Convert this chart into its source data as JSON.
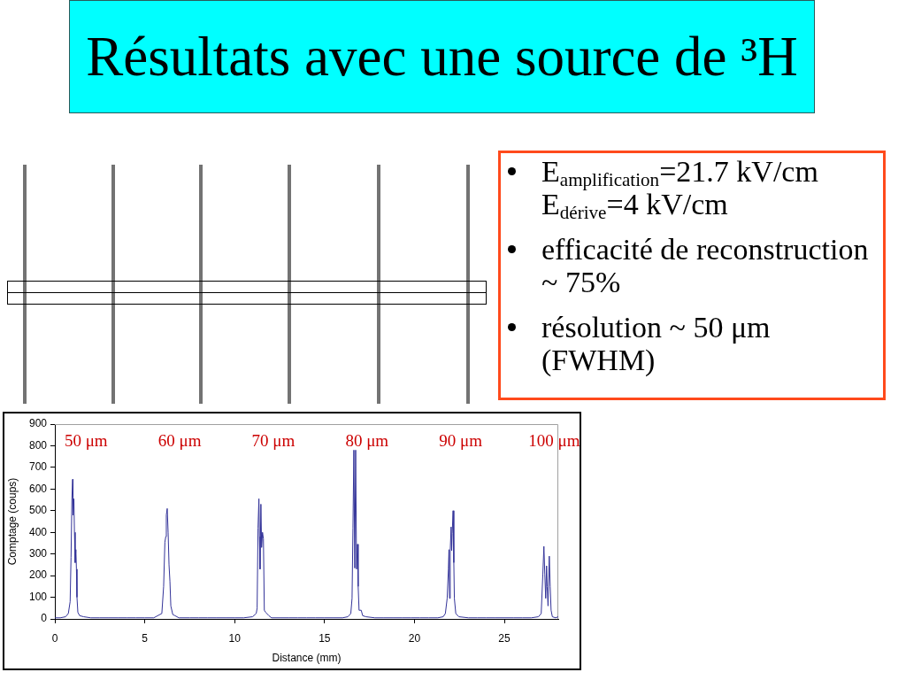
{
  "chart_data": {
    "type": "line",
    "title": "Résultats avec une source de ³H",
    "xlabel": "Distance (mm)",
    "ylabel": "Comptage (coups)",
    "xlim": [
      0,
      28
    ],
    "xticks": [
      0,
      5,
      10,
      15,
      20,
      25
    ],
    "ylim": [
      0,
      900
    ],
    "yticks": [
      0,
      100,
      200,
      300,
      400,
      500,
      600,
      700,
      800,
      900
    ],
    "grid": false,
    "legend": false,
    "marker": "none",
    "line_style": "solid",
    "x": [
      0,
      0.3,
      0.6,
      0.75,
      0.85,
      0.9,
      0.95,
      0.99,
      1.01,
      1.06,
      1.09,
      1.13,
      1.17,
      1.2,
      1.23,
      1.28,
      1.38,
      1.6,
      2,
      2.5,
      3,
      3.5,
      4,
      4.5,
      5,
      5.5,
      5.95,
      6.05,
      6.12,
      6.17,
      6.2,
      6.25,
      6.3,
      6.35,
      6.4,
      6.45,
      6.56,
      6.68,
      6.9,
      7.5,
      8,
      8.5,
      9,
      9.5,
      10,
      10.5,
      11,
      11.2,
      11.25,
      11.3,
      11.35,
      11.38,
      11.41,
      11.46,
      11.5,
      11.55,
      11.6,
      11.65,
      11.73,
      11.9,
      12.05,
      12.5,
      13,
      13.5,
      14,
      14.5,
      15,
      15.5,
      16,
      16.3,
      16.46,
      16.53,
      16.58,
      16.63,
      16.68,
      16.73,
      16.78,
      16.83,
      16.87,
      16.92,
      17.04,
      17.12,
      17.3,
      17.8,
      18.3,
      18.8,
      19.3,
      19.8,
      20.3,
      20.8,
      21.3,
      21.6,
      21.72,
      21.82,
      21.89,
      21.92,
      21.95,
      21.99,
      22.04,
      22.07,
      22.1,
      22.15,
      22.19,
      22.22,
      22.3,
      22.47,
      23,
      23.5,
      24,
      24.5,
      25,
      25.5,
      26,
      26.5,
      26.9,
      27.05,
      27.14,
      27.2,
      27.25,
      27.3,
      27.35,
      27.38,
      27.43,
      27.5,
      27.55,
      27.6,
      27.67,
      27.85,
      28
    ],
    "series": [
      {
        "color": "#333399",
        "values": [
          5,
          5,
          10,
          25,
          80,
          285,
          560,
          645,
          480,
          555,
          400,
          260,
          320,
          230,
          100,
          30,
          15,
          10,
          5,
          5,
          5,
          5,
          5,
          5,
          5,
          5,
          25,
          150,
          355,
          380,
          480,
          510,
          400,
          250,
          175,
          60,
          20,
          15,
          5,
          5,
          5,
          5,
          5,
          5,
          5,
          5,
          10,
          25,
          50,
          420,
          555,
          380,
          230,
          530,
          330,
          400,
          370,
          40,
          30,
          15,
          5,
          5,
          5,
          5,
          5,
          5,
          5,
          5,
          5,
          10,
          25,
          95,
          420,
          780,
          235,
          780,
          230,
          345,
          150,
          40,
          40,
          15,
          10,
          5,
          5,
          5,
          5,
          5,
          5,
          5,
          5,
          10,
          25,
          95,
          230,
          320,
          95,
          315,
          425,
          315,
          395,
          500,
          260,
          95,
          25,
          10,
          5,
          5,
          5,
          5,
          5,
          5,
          5,
          5,
          10,
          25,
          205,
          335,
          205,
          95,
          245,
          150,
          60,
          290,
          150,
          40,
          10,
          5,
          10
        ]
      }
    ],
    "annotations": [
      "E$_{amplification}$=21.7 kV/cm\nE$_{dérive}$=4 kV/cm",
      "efficacité de reconstruction ~ 75%",
      "résolution ~ 50 μm (FWHM)",
      "50 μm",
      "60 μm",
      "70 μm",
      "80 μm",
      "90 μm",
      "100 μm"
    ]
  }
}
